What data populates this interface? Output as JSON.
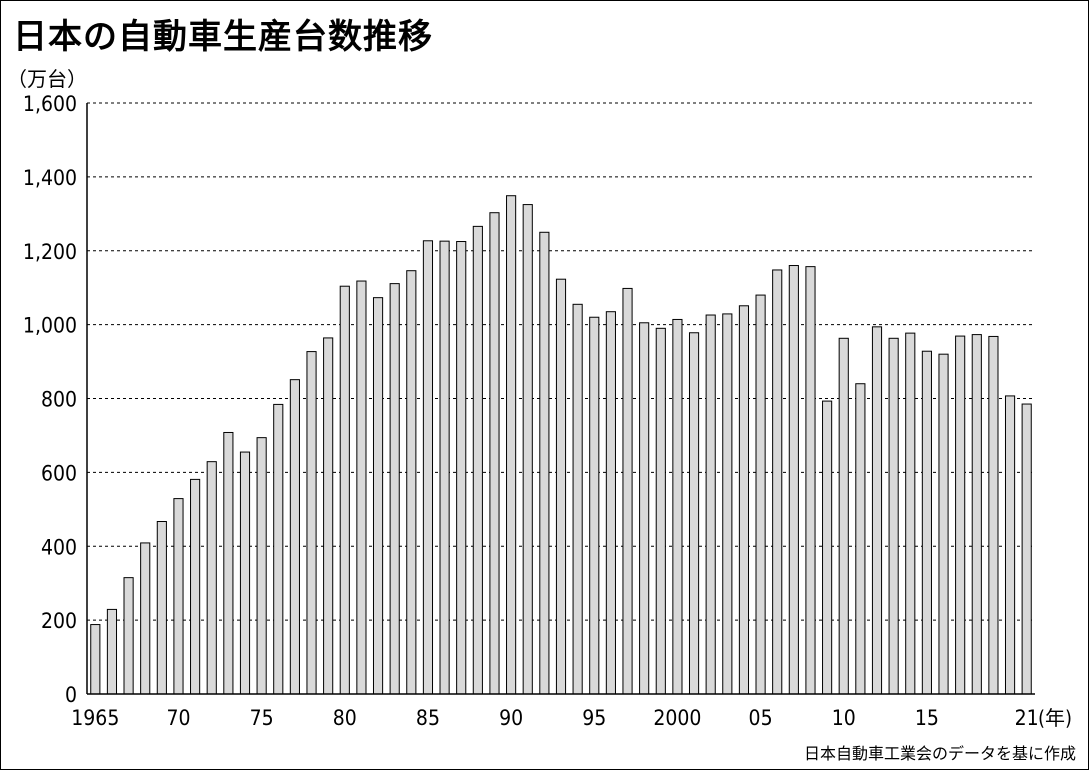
{
  "chart_data": {
    "type": "bar",
    "title": "日本の自動車生産台数推移",
    "ylabel": "（万台）",
    "xlabel_suffix": "(年)",
    "source": "日本自動車工業会のデータを基に作成",
    "ylim": [
      0,
      1600
    ],
    "yticks": [
      0,
      200,
      400,
      600,
      800,
      1000,
      1200,
      1400,
      1600
    ],
    "ytick_labels": [
      "0",
      "200",
      "400",
      "600",
      "800",
      "1,000",
      "1,200",
      "1,400",
      "1,600"
    ],
    "grid": true,
    "grid_style": "dashed",
    "bar_color": "#d9d9d9",
    "bar_edge_color": "#000000",
    "x_tick_labels": [
      {
        "index": 0,
        "label": "1965"
      },
      {
        "index": 5,
        "label": "70"
      },
      {
        "index": 10,
        "label": "75"
      },
      {
        "index": 15,
        "label": "80"
      },
      {
        "index": 20,
        "label": "85"
      },
      {
        "index": 25,
        "label": "90"
      },
      {
        "index": 30,
        "label": "95"
      },
      {
        "index": 35,
        "label": "2000"
      },
      {
        "index": 40,
        "label": "05"
      },
      {
        "index": 45,
        "label": "10"
      },
      {
        "index": 50,
        "label": "15"
      },
      {
        "index": 56,
        "label": "21"
      }
    ],
    "categories": [
      1965,
      1966,
      1967,
      1968,
      1969,
      1970,
      1971,
      1972,
      1973,
      1974,
      1975,
      1976,
      1977,
      1978,
      1979,
      1980,
      1981,
      1982,
      1983,
      1984,
      1985,
      1986,
      1987,
      1988,
      1989,
      1990,
      1991,
      1992,
      1993,
      1994,
      1995,
      1996,
      1997,
      1998,
      1999,
      2000,
      2001,
      2002,
      2003,
      2004,
      2005,
      2006,
      2007,
      2008,
      2009,
      2010,
      2011,
      2012,
      2013,
      2014,
      2015,
      2016,
      2017,
      2018,
      2019,
      2020,
      2021
    ],
    "values": [
      188,
      229,
      315,
      409,
      467,
      529,
      581,
      629,
      708,
      655,
      694,
      784,
      851,
      927,
      964,
      1104,
      1118,
      1073,
      1111,
      1146,
      1227,
      1226,
      1225,
      1266,
      1303,
      1349,
      1325,
      1250,
      1123,
      1055,
      1020,
      1035,
      1098,
      1005,
      990,
      1014,
      978,
      1026,
      1029,
      1051,
      1080,
      1148,
      1160,
      1157,
      793,
      963,
      840,
      994,
      963,
      977,
      928,
      920,
      969,
      973,
      968,
      807,
      785
    ]
  }
}
